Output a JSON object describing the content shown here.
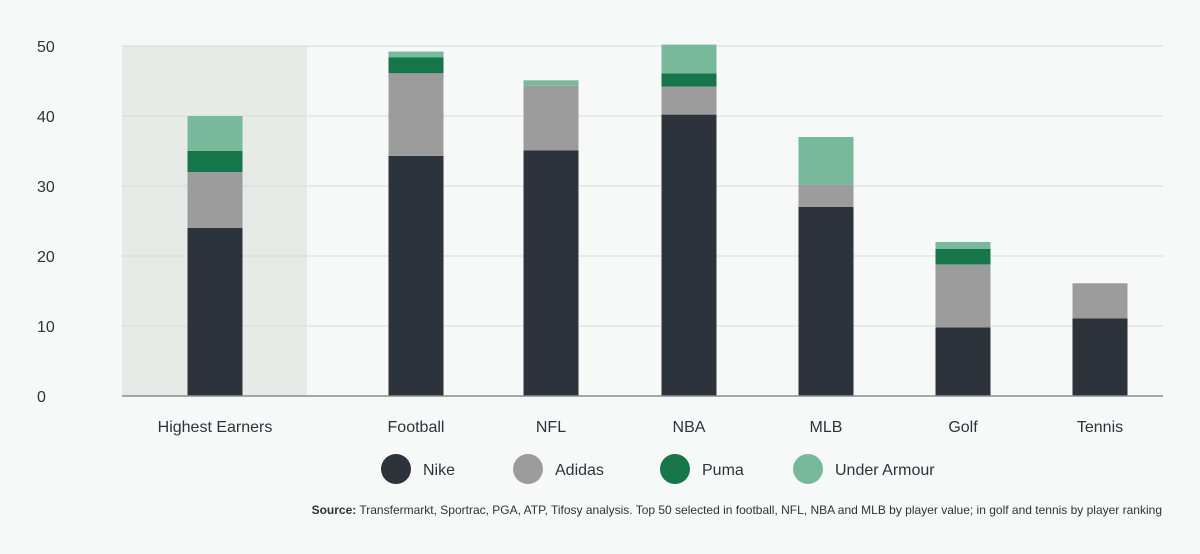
{
  "chart_data": {
    "type": "bar",
    "stacked": true,
    "categories": [
      "Highest Earners",
      "Football",
      "NFL",
      "NBA",
      "MLB",
      "Golf",
      "Tennis"
    ],
    "highlighted_category": "Highest Earners",
    "yticks": [
      0,
      10,
      20,
      30,
      40,
      50
    ],
    "ylim": [
      0,
      50
    ],
    "grid": true,
    "legend_position": "bottom",
    "series": [
      {
        "name": "Nike",
        "color": "#2c333b",
        "values": [
          24,
          34.3,
          35.1,
          40.2,
          27,
          9.8,
          11.1
        ]
      },
      {
        "name": "Adidas",
        "color": "#9b9c9b",
        "values": [
          8,
          11.8,
          9.2,
          4,
          3.2,
          9,
          5
        ]
      },
      {
        "name": "Puma",
        "color": "#16764a",
        "values": [
          3,
          2.3,
          0,
          1.9,
          0,
          2.2,
          0
        ]
      },
      {
        "name": "Under Armour",
        "color": "#79b99b",
        "values": [
          5,
          0.8,
          0.8,
          4.1,
          6.8,
          1,
          0
        ]
      }
    ]
  },
  "source": {
    "label": "Source:",
    "text": "Transfermarkt, Sportrac, PGA, ATP, Tifosy analysis. Top 50 selected in football, NFL, NBA and MLB by player value; in golf and tennis by player ranking"
  },
  "colors": {
    "background": "#f7f9f8",
    "highlight_band": "#e6ebe8",
    "gridline": "#d7dbd9",
    "axis": "#8a8d8f"
  }
}
